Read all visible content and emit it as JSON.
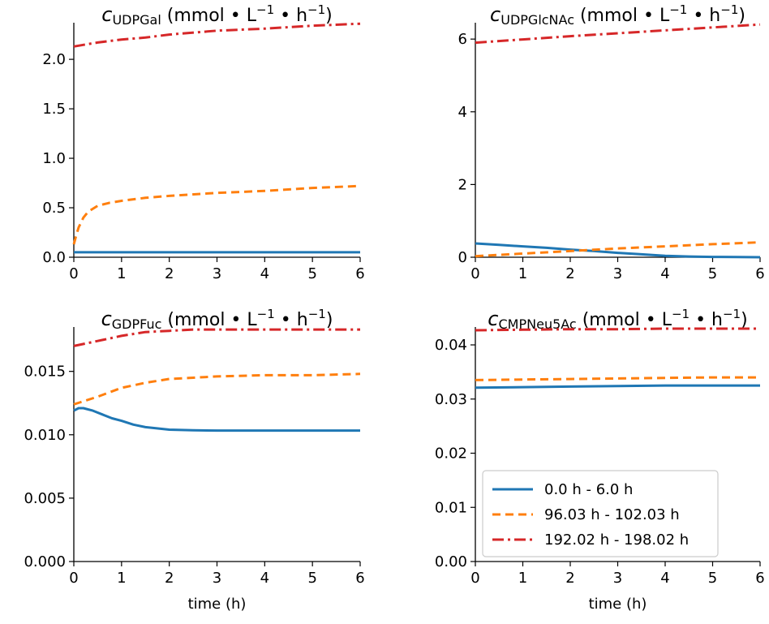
{
  "colors": {
    "blue": "#1f77b4",
    "orange": "#ff7f0e",
    "red": "#d62728"
  },
  "series_names": [
    "0.0 h - 6.0 h",
    "96.03 h - 102.03 h",
    "192.02 h - 198.02 h"
  ],
  "chart_data": [
    {
      "type": "line",
      "title_var": "c",
      "title_sub": "UDPGal",
      "title_units": "(mmol • L",
      "title_mid": " • h",
      "title_sup": "−1",
      "title_close": ")",
      "xlabel": "",
      "xlim": [
        0,
        6
      ],
      "ylim": [
        0,
        2.37
      ],
      "xticks": [
        "0",
        "1",
        "2",
        "3",
        "4",
        "5",
        "6"
      ],
      "yticks": [
        {
          "v": 0.0,
          "label": "0.0"
        },
        {
          "v": 0.5,
          "label": "0.5"
        },
        {
          "v": 1.0,
          "label": "1.0"
        },
        {
          "v": 1.5,
          "label": "1.5"
        },
        {
          "v": 2.0,
          "label": "2.0"
        }
      ],
      "series": [
        {
          "x": [
            0,
            1,
            2,
            3,
            4,
            5,
            6
          ],
          "y": [
            0.05,
            0.05,
            0.05,
            0.05,
            0.05,
            0.05,
            0.05
          ]
        },
        {
          "x": [
            0,
            0.05,
            0.1,
            0.2,
            0.3,
            0.5,
            0.75,
            1,
            1.5,
            2,
            3,
            4,
            5,
            6
          ],
          "y": [
            0.13,
            0.22,
            0.3,
            0.4,
            0.46,
            0.52,
            0.55,
            0.57,
            0.6,
            0.62,
            0.65,
            0.67,
            0.7,
            0.72
          ]
        },
        {
          "x": [
            0,
            0.25,
            0.5,
            1,
            1.5,
            2,
            3,
            4,
            5,
            6
          ],
          "y": [
            2.13,
            2.15,
            2.17,
            2.2,
            2.22,
            2.25,
            2.29,
            2.31,
            2.34,
            2.36
          ]
        }
      ]
    },
    {
      "type": "line",
      "title_var": "c",
      "title_sub": "UDPGlcNAc",
      "title_units": "(mmol • L",
      "title_mid": " • h",
      "title_sup": "−1",
      "title_close": ")",
      "xlabel": "",
      "xlim": [
        0,
        6
      ],
      "ylim": [
        0,
        6.45
      ],
      "xticks": [
        "0",
        "1",
        "2",
        "3",
        "4",
        "5",
        "6"
      ],
      "yticks": [
        {
          "v": 0,
          "label": "0"
        },
        {
          "v": 2,
          "label": "2"
        },
        {
          "v": 4,
          "label": "4"
        },
        {
          "v": 6,
          "label": "6"
        }
      ],
      "series": [
        {
          "x": [
            0,
            0.5,
            1,
            1.5,
            2,
            2.5,
            3,
            3.5,
            4,
            4.5,
            5,
            5.5,
            6
          ],
          "y": [
            0.38,
            0.34,
            0.3,
            0.26,
            0.21,
            0.17,
            0.12,
            0.08,
            0.04,
            0.02,
            0.01,
            0.005,
            0.0
          ]
        },
        {
          "x": [
            0,
            1,
            2,
            3,
            4,
            5,
            6
          ],
          "y": [
            0.03,
            0.1,
            0.17,
            0.24,
            0.3,
            0.36,
            0.41
          ]
        },
        {
          "x": [
            0,
            1,
            2,
            3,
            4,
            5,
            6
          ],
          "y": [
            5.9,
            5.99,
            6.08,
            6.16,
            6.24,
            6.32,
            6.4
          ]
        }
      ]
    },
    {
      "type": "line",
      "title_var": "c",
      "title_sub": "GDPFuc",
      "title_units": "(mmol • L",
      "title_mid": " • h",
      "title_sup": "−1",
      "title_close": ")",
      "xlabel": "time (h)",
      "xlim": [
        0,
        6
      ],
      "ylim": [
        0,
        0.0185
      ],
      "xticks": [
        "0",
        "1",
        "2",
        "3",
        "4",
        "5",
        "6"
      ],
      "yticks": [
        {
          "v": 0.0,
          "label": "0.000"
        },
        {
          "v": 0.005,
          "label": "0.005"
        },
        {
          "v": 0.01,
          "label": "0.010"
        },
        {
          "v": 0.015,
          "label": "0.015"
        }
      ],
      "series": [
        {
          "x": [
            0,
            0.1,
            0.2,
            0.4,
            0.6,
            0.8,
            1,
            1.25,
            1.5,
            2,
            2.5,
            3,
            4,
            5,
            6
          ],
          "y": [
            0.0119,
            0.0121,
            0.0121,
            0.0119,
            0.0116,
            0.0113,
            0.0111,
            0.0108,
            0.0106,
            0.0104,
            0.01035,
            0.01033,
            0.01033,
            0.01033,
            0.01033
          ]
        },
        {
          "x": [
            0,
            0.5,
            1,
            1.5,
            2,
            2.5,
            3,
            4,
            5,
            6
          ],
          "y": [
            0.0124,
            0.013,
            0.0137,
            0.0141,
            0.0144,
            0.0145,
            0.0146,
            0.0147,
            0.0147,
            0.0148
          ]
        },
        {
          "x": [
            0,
            0.5,
            1,
            1.5,
            2,
            2.5,
            3,
            4,
            5,
            6
          ],
          "y": [
            0.017,
            0.0174,
            0.0178,
            0.0181,
            0.0182,
            0.0183,
            0.0183,
            0.0183,
            0.0183,
            0.0183
          ]
        }
      ]
    },
    {
      "type": "line",
      "title_var": "c",
      "title_sub": "CMPNeu5Ac",
      "title_units": "(mmol • L",
      "title_mid": " • h",
      "title_sup": "−1",
      "title_close": ")",
      "xlabel": "time (h)",
      "xlim": [
        0,
        6
      ],
      "ylim": [
        0,
        0.0433
      ],
      "xticks": [
        "0",
        "1",
        "2",
        "3",
        "4",
        "5",
        "6"
      ],
      "yticks": [
        {
          "v": 0.0,
          "label": "0.00"
        },
        {
          "v": 0.01,
          "label": "0.01"
        },
        {
          "v": 0.02,
          "label": "0.02"
        },
        {
          "v": 0.03,
          "label": "0.03"
        },
        {
          "v": 0.04,
          "label": "0.04"
        }
      ],
      "legend": "lower-left",
      "series": [
        {
          "x": [
            0,
            1,
            2,
            3,
            4,
            5,
            6
          ],
          "y": [
            0.0321,
            0.0322,
            0.0323,
            0.0324,
            0.0325,
            0.0325,
            0.0325
          ]
        },
        {
          "x": [
            0,
            1,
            2,
            3,
            4,
            5,
            6
          ],
          "y": [
            0.0335,
            0.0336,
            0.0337,
            0.0338,
            0.0339,
            0.034,
            0.034
          ]
        },
        {
          "x": [
            0,
            1,
            2,
            3,
            4,
            5,
            6
          ],
          "y": [
            0.0427,
            0.0428,
            0.0429,
            0.0429,
            0.043,
            0.043,
            0.043
          ]
        }
      ]
    }
  ]
}
